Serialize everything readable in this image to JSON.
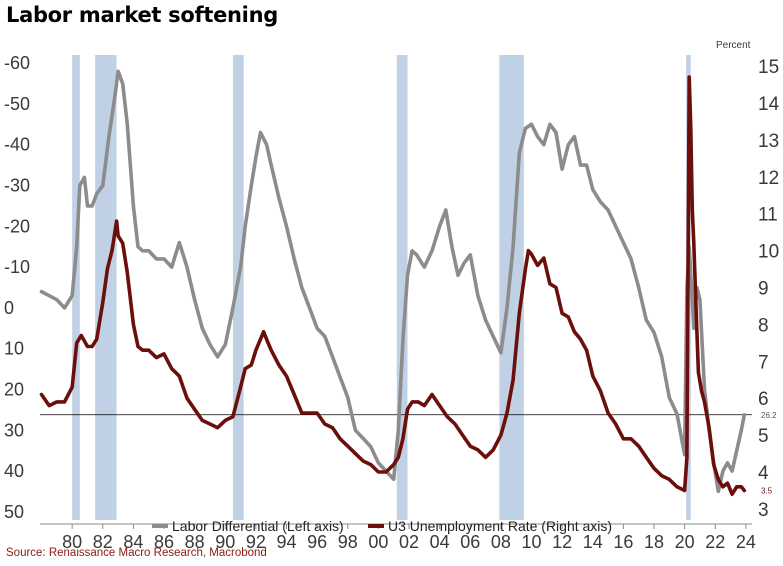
{
  "title": "Labor market softening",
  "source": "Source: Renaissance Macro Research, Macrobond",
  "chart_data": {
    "type": "line",
    "right_axis_unit": "Percent",
    "x_ticks": [
      "80",
      "82",
      "84",
      "86",
      "88",
      "90",
      "92",
      "94",
      "96",
      "98",
      "00",
      "02",
      "04",
      "06",
      "08",
      "10",
      "12",
      "14",
      "16",
      "18",
      "20",
      "22",
      "24"
    ],
    "left_ticks": [
      "-60",
      "-50",
      "-40",
      "-30",
      "-20",
      "-10",
      "0",
      "10",
      "20",
      "30",
      "40",
      "50"
    ],
    "right_ticks": [
      "15",
      "14",
      "13",
      "12",
      "11",
      "10",
      "9",
      "8",
      "7",
      "6",
      "5",
      "4",
      "3"
    ],
    "left_ylim": [
      -62,
      52
    ],
    "left_inverted": true,
    "right_ylim": [
      2.7,
      15.3
    ],
    "xlim": [
      1977.9,
      2024.4
    ],
    "recessions": [
      [
        1980.0,
        1980.5
      ],
      [
        1981.5,
        1982.9
      ],
      [
        1990.5,
        1991.2
      ],
      [
        2001.2,
        2001.9
      ],
      [
        2007.9,
        2009.5
      ],
      [
        2020.1,
        2020.4
      ]
    ],
    "reference_line": {
      "series": "Labor Differential",
      "value": 26.2,
      "label": "26.2"
    },
    "colors": {
      "recession": "#c0d1e6",
      "differential": "#8c8c8c",
      "unemployment": "#6b0f0a"
    },
    "series": [
      {
        "name": "Labor Differential (Left axis)",
        "axis": "left",
        "x": [
          1978.0,
          1978.5,
          1979.0,
          1979.5,
          1980.0,
          1980.3,
          1980.5,
          1980.8,
          1981.0,
          1981.3,
          1981.6,
          1982.0,
          1982.4,
          1982.8,
          1983.0,
          1983.3,
          1983.6,
          1984.0,
          1984.3,
          1984.6,
          1985.0,
          1985.5,
          1986.0,
          1986.5,
          1987.0,
          1987.5,
          1988.0,
          1988.5,
          1989.0,
          1989.5,
          1990.0,
          1990.5,
          1991.0,
          1991.3,
          1991.7,
          1992.0,
          1992.3,
          1992.7,
          1993.0,
          1993.5,
          1994.0,
          1994.5,
          1995.0,
          1995.5,
          1996.0,
          1996.5,
          1997.0,
          1997.5,
          1998.0,
          1998.5,
          1999.0,
          1999.5,
          2000.0,
          2000.5,
          2001.0,
          2001.3,
          2001.6,
          2001.9,
          2002.2,
          2002.5,
          2003.0,
          2003.5,
          2004.0,
          2004.4,
          2004.8,
          2005.2,
          2005.6,
          2006.0,
          2006.5,
          2007.0,
          2007.5,
          2008.0,
          2008.4,
          2008.8,
          2009.2,
          2009.6,
          2010.0,
          2010.4,
          2010.8,
          2011.2,
          2011.6,
          2012.0,
          2012.4,
          2012.8,
          2013.2,
          2013.6,
          2014.0,
          2014.5,
          2015.0,
          2015.5,
          2016.0,
          2016.5,
          2017.0,
          2017.5,
          2018.0,
          2018.5,
          2019.0,
          2019.5,
          2020.0,
          2020.15,
          2020.3,
          2020.45,
          2020.6,
          2020.8,
          2021.0,
          2021.3,
          2021.6,
          2021.9,
          2022.2,
          2022.5,
          2022.8,
          2023.1,
          2023.4,
          2023.7,
          2023.9
        ],
        "y": [
          -4,
          -3,
          -2,
          0,
          -3,
          -15,
          -30,
          -32,
          -25,
          -25,
          -28,
          -30,
          -42,
          -52,
          -58,
          -55,
          -45,
          -25,
          -15,
          -14,
          -14,
          -12,
          -12,
          -10,
          -16,
          -10,
          -2,
          5,
          9,
          12,
          9,
          0,
          -10,
          -20,
          -30,
          -37,
          -43,
          -40,
          -35,
          -27,
          -20,
          -12,
          -5,
          0,
          5,
          7,
          12,
          17,
          22,
          30,
          32,
          34,
          38,
          40,
          42,
          30,
          8,
          -8,
          -14,
          -13,
          -10,
          -14,
          -20,
          -24,
          -15,
          -8,
          -11,
          -13,
          -3,
          3,
          7,
          11,
          0,
          -15,
          -38,
          -44,
          -45,
          -42,
          -40,
          -45,
          -43,
          -34,
          -40,
          -42,
          -35,
          -35,
          -29,
          -26,
          -24,
          -20,
          -16,
          -12,
          -5,
          3,
          6,
          12,
          22,
          26,
          36,
          -5,
          -15,
          -5,
          5,
          -5,
          -2,
          20,
          30,
          38,
          45,
          40,
          38,
          40,
          35,
          30,
          26.2
        ]
      },
      {
        "name": "U3 Unemployment Rate (Right axis)",
        "axis": "right",
        "x": [
          1978.0,
          1978.5,
          1979.0,
          1979.5,
          1980.0,
          1980.3,
          1980.6,
          1981.0,
          1981.3,
          1981.6,
          1982.0,
          1982.3,
          1982.6,
          1982.9,
          1983.0,
          1983.3,
          1983.6,
          1984.0,
          1984.3,
          1984.6,
          1985.0,
          1985.5,
          1986.0,
          1986.5,
          1987.0,
          1987.5,
          1988.0,
          1988.5,
          1989.0,
          1989.5,
          1990.0,
          1990.5,
          1991.0,
          1991.3,
          1991.7,
          1992.0,
          1992.3,
          1992.5,
          1992.8,
          1993.0,
          1993.5,
          1994.0,
          1994.5,
          1995.0,
          1995.5,
          1996.0,
          1996.5,
          1997.0,
          1997.5,
          1998.0,
          1998.5,
          1999.0,
          1999.5,
          2000.0,
          2000.5,
          2001.0,
          2001.3,
          2001.6,
          2001.9,
          2002.2,
          2002.6,
          2003.0,
          2003.5,
          2004.0,
          2004.5,
          2005.0,
          2005.5,
          2006.0,
          2006.5,
          2007.0,
          2007.5,
          2008.0,
          2008.4,
          2008.8,
          2009.2,
          2009.6,
          2009.8,
          2010.0,
          2010.4,
          2010.8,
          2011.2,
          2011.6,
          2012.0,
          2012.4,
          2012.8,
          2013.2,
          2013.6,
          2014.0,
          2014.5,
          2015.0,
          2015.5,
          2016.0,
          2016.5,
          2017.0,
          2017.5,
          2018.0,
          2018.5,
          2019.0,
          2019.5,
          2020.0,
          2020.15,
          2020.3,
          2020.4,
          2020.5,
          2020.6,
          2020.75,
          2020.9,
          2021.1,
          2021.3,
          2021.6,
          2021.9,
          2022.2,
          2022.5,
          2022.8,
          2023.1,
          2023.4,
          2023.7,
          2023.9
        ],
        "y": [
          6.1,
          5.8,
          5.9,
          5.9,
          6.3,
          7.5,
          7.7,
          7.4,
          7.4,
          7.6,
          8.6,
          9.5,
          10.0,
          10.8,
          10.4,
          10.2,
          9.4,
          8.0,
          7.4,
          7.3,
          7.3,
          7.1,
          7.2,
          6.8,
          6.6,
          6.0,
          5.7,
          5.4,
          5.3,
          5.2,
          5.4,
          5.5,
          6.3,
          6.8,
          6.9,
          7.3,
          7.6,
          7.8,
          7.5,
          7.3,
          6.9,
          6.6,
          6.1,
          5.6,
          5.6,
          5.6,
          5.3,
          5.2,
          4.9,
          4.7,
          4.5,
          4.3,
          4.2,
          4.0,
          4.0,
          4.2,
          4.4,
          4.9,
          5.7,
          5.9,
          5.9,
          5.8,
          6.1,
          5.8,
          5.5,
          5.3,
          5.0,
          4.7,
          4.6,
          4.4,
          4.6,
          5.0,
          5.6,
          6.5,
          8.3,
          9.5,
          10.0,
          9.9,
          9.6,
          9.8,
          9.1,
          9.0,
          8.3,
          8.2,
          7.8,
          7.6,
          7.3,
          6.6,
          6.2,
          5.6,
          5.3,
          4.9,
          4.9,
          4.7,
          4.4,
          4.1,
          3.9,
          3.8,
          3.6,
          3.5,
          4.4,
          14.7,
          13.3,
          11.1,
          10.2,
          8.4,
          6.7,
          6.2,
          5.9,
          5.2,
          4.2,
          3.8,
          3.6,
          3.7,
          3.4,
          3.6,
          3.6,
          3.5
        ]
      }
    ],
    "latest_labels": {
      "differential": "26.2",
      "unemployment": "3.5"
    }
  }
}
